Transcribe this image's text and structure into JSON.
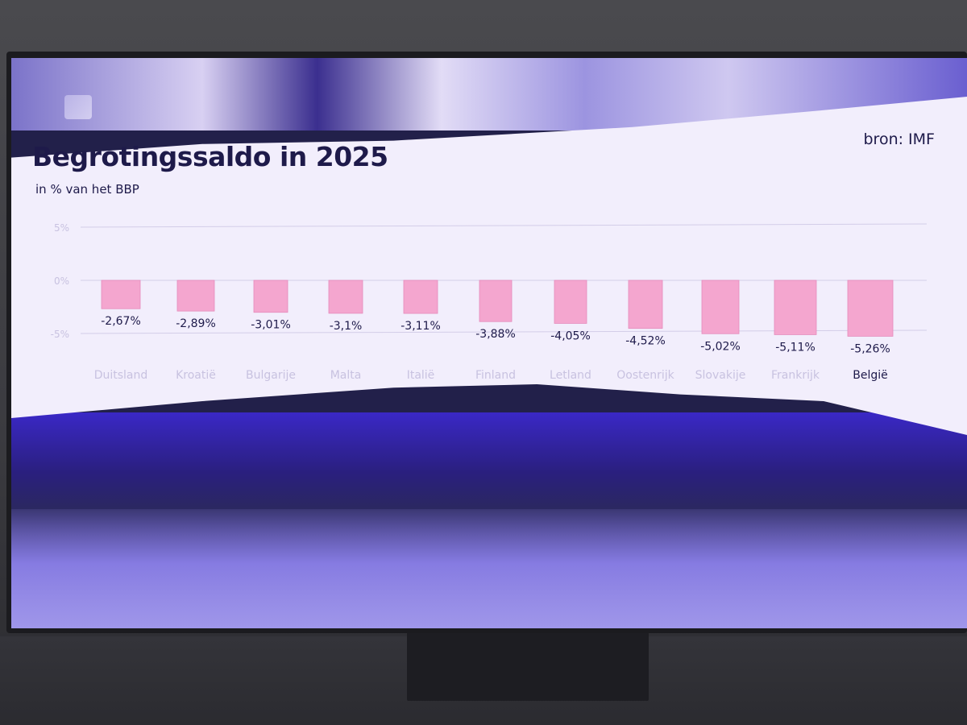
{
  "header": {
    "title": "Begrotingssaldo in 2025",
    "subtitle": "in % van het BBP",
    "source": "bron: IMF"
  },
  "colors": {
    "bar": "#f4a6cf",
    "bar_border": "#e58bbb",
    "text": "#1e1a4a",
    "faded_label": "#c8c2e0",
    "grid": "#d3cde8"
  },
  "chart_data": {
    "type": "bar",
    "title": "Begrotingssaldo in 2025",
    "subtitle": "in % van het BBP",
    "categories": [
      "Duitsland",
      "Kroatië",
      "Bulgarije",
      "Malta",
      "Italië",
      "Finland",
      "Letland",
      "Oostenrijk",
      "Slovakije",
      "Frankrijk",
      "België"
    ],
    "values": [
      -2.67,
      -2.89,
      -3.01,
      -3.1,
      -3.11,
      -3.88,
      -4.05,
      -4.52,
      -5.02,
      -5.11,
      -5.26
    ],
    "value_labels": [
      "-2,67%",
      "-2,89%",
      "-3,01%",
      "-3,1%",
      "-3,11%",
      "-3,88%",
      "-4,05%",
      "-4,52%",
      "-5,02%",
      "-5,11%",
      "-5,26%"
    ],
    "highlighted_category": "België",
    "y_ticks": [
      5,
      0,
      -5
    ],
    "y_tick_labels": [
      "5%",
      "0%",
      "-5%"
    ],
    "ylim": [
      -5.5,
      5
    ],
    "grid": true,
    "legend": "none",
    "source": "bron: IMF"
  }
}
